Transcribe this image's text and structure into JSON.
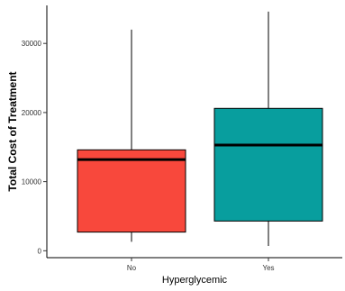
{
  "chart_data": {
    "type": "boxplot",
    "xlabel": "Hyperglycemic",
    "ylabel": "Total Cost of Treatment",
    "ylim": [
      -1000,
      35500
    ],
    "yticks": [
      0,
      10000,
      20000,
      30000
    ],
    "ytick_labels": [
      "0",
      "10000",
      "20000",
      "30000"
    ],
    "grid": false,
    "legend": "none",
    "categories": [
      "No",
      "Yes"
    ],
    "boxes": [
      {
        "category": "No",
        "whisker_low": 1300,
        "q1": 2700,
        "median": 13200,
        "q3": 14600,
        "whisker_high": 32000,
        "color": "#f8483c"
      },
      {
        "category": "Yes",
        "whisker_low": 700,
        "q1": 4300,
        "median": 15300,
        "q3": 20600,
        "whisker_high": 34600,
        "color": "#089e9e"
      }
    ]
  }
}
